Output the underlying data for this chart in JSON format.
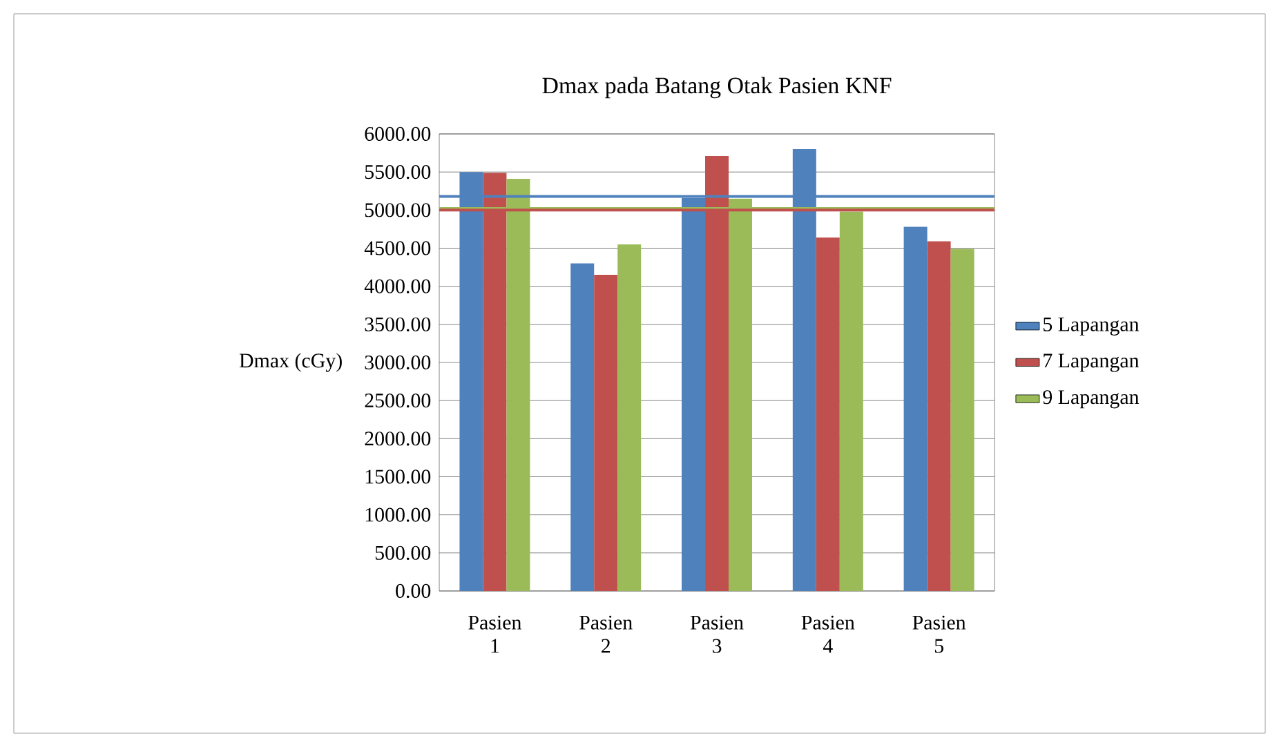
{
  "chart_data": {
    "type": "bar",
    "title": "Dmax pada Batang Otak Pasien KNF",
    "ylabel": "Dmax (cGy)",
    "categories": [
      "Pasien 1",
      "Pasien 2",
      "Pasien 3",
      "Pasien 4",
      "Pasien 5"
    ],
    "series": [
      {
        "name": "5 Lapangan",
        "color": "#4f81bd",
        "values": [
          5500,
          4300,
          5160,
          5800,
          4780
        ]
      },
      {
        "name": "7 Lapangan",
        "color": "#c0504d",
        "values": [
          5490,
          4150,
          5710,
          4640,
          4590
        ]
      },
      {
        "name": "9 Lapangan",
        "color": "#9bbb59",
        "values": [
          5410,
          4550,
          5150,
          4980,
          4490
        ]
      }
    ],
    "ylim": [
      0,
      6000
    ],
    "yticks": [
      {
        "value": 0,
        "label": "0.00"
      },
      {
        "value": 500,
        "label": "500.00"
      },
      {
        "value": 1000,
        "label": "1000.00"
      },
      {
        "value": 1500,
        "label": "1500.00"
      },
      {
        "value": 2000,
        "label": "2000.00"
      },
      {
        "value": 2500,
        "label": "2500.00"
      },
      {
        "value": 3000,
        "label": "3000.00"
      },
      {
        "value": 3500,
        "label": "3500.00"
      },
      {
        "value": 4000,
        "label": "4000.00"
      },
      {
        "value": 4500,
        "label": "4500.00"
      },
      {
        "value": 5000,
        "label": "5000.00"
      },
      {
        "value": 5500,
        "label": "5500.00"
      },
      {
        "value": 6000,
        "label": "6000.00"
      }
    ],
    "ref_lines": [
      {
        "axis": "y",
        "value": 5180,
        "color": "#4f81bd"
      },
      {
        "axis": "y",
        "value": 5020,
        "color": "#9bbb59"
      },
      {
        "axis": "y",
        "value": 5000,
        "color": "#c0504d"
      }
    ],
    "grid": "y",
    "legend": "right"
  }
}
